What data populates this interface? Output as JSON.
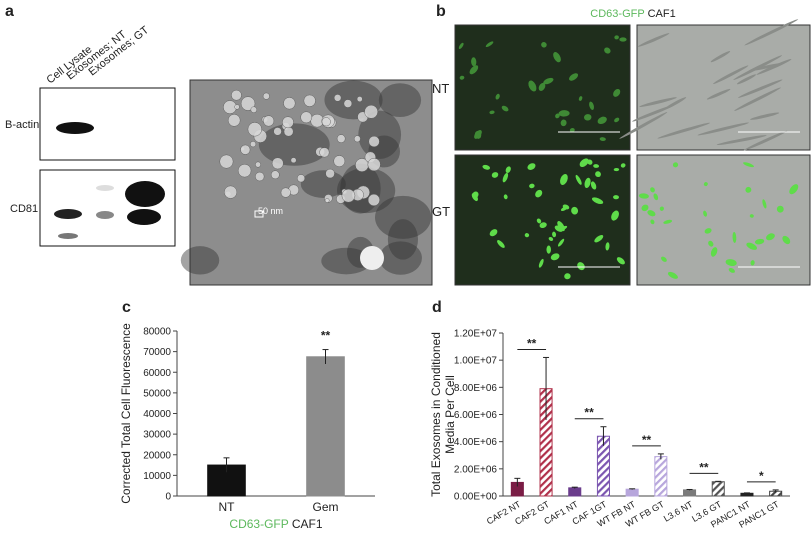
{
  "figure": {
    "panel_a": {
      "letter": "a",
      "lanes": [
        "Cell Lysate",
        "Exosomes; NT",
        "Exosomes; GT"
      ],
      "blots": [
        "B-actin",
        "CD81"
      ],
      "scale": "50 nm"
    },
    "panel_b": {
      "letter": "b",
      "title": [
        {
          "text": "CD63-GFP",
          "color": "#5cb85c"
        },
        {
          "text": "CAF1",
          "color": "#222222"
        }
      ],
      "rows": [
        "NT",
        "GT"
      ]
    }
  },
  "chart_data": [
    {
      "type": "bar",
      "panel": "c",
      "ylabel": [
        "Corrected Total Cell Fluorescence"
      ],
      "xlabel": [
        {
          "text": "CD63-GFP",
          "color": "#5cb85c"
        },
        {
          "text": "CAF1",
          "color": "#222222"
        }
      ],
      "categories": [
        "NT",
        "Gem"
      ],
      "values": [
        15000,
        67500
      ],
      "errors": [
        3500,
        3500
      ],
      "colors": [
        "#111111",
        "#8c8c8c"
      ],
      "hatched": [
        false,
        false
      ],
      "ylim": [
        0,
        80000
      ],
      "yticks": [
        0,
        10000,
        20000,
        30000,
        40000,
        50000,
        60000,
        70000,
        80000
      ],
      "significance": [
        {
          "pair": [
            1,
            1
          ],
          "label": "**"
        }
      ],
      "rotate_labels": false
    },
    {
      "type": "bar",
      "panel": "d",
      "ylabel": [
        "Total Exosomes in Conditioned",
        "Media Per Cell"
      ],
      "categories": [
        "CAF2 NT",
        "CAF2 GT",
        "CAF1 NT",
        "CAF 1GT",
        "WT FB NT",
        "WT FB GT",
        "L3.6 NT",
        "L3.6 GT",
        "PANC1 NT",
        "PANC1 GT"
      ],
      "values": [
        1000000,
        7900000,
        600000,
        4400000,
        500000,
        2900000,
        450000,
        1050000,
        200000,
        350000
      ],
      "errors": [
        300000,
        2300000,
        50000,
        700000,
        30000,
        200000,
        30000,
        30000,
        30000,
        100000
      ],
      "colors": [
        "#7a1d45",
        "#b0304a",
        "#6a3c8c",
        "#7b55b0",
        "#b7a6dc",
        "#b7a6dc",
        "#7a7a7a",
        "#555555",
        "#222222",
        "#444444"
      ],
      "hatched": [
        false,
        true,
        false,
        true,
        false,
        true,
        false,
        true,
        false,
        true
      ],
      "ylim": [
        0,
        12000000
      ],
      "yticks": [
        {
          "value": 0,
          "label": "0.00E+00"
        },
        {
          "value": 2000000,
          "label": "2.00E+06"
        },
        {
          "value": 4000000,
          "label": "4.00E+06"
        },
        {
          "value": 6000000,
          "label": "6.00E+06"
        },
        {
          "value": 8000000,
          "label": "8.00E+06"
        },
        {
          "value": 10000000,
          "label": "1.00E+07"
        },
        {
          "value": 12000000,
          "label": "1.20E+07"
        }
      ],
      "significance": [
        {
          "pair": [
            0,
            1
          ],
          "label": "**"
        },
        {
          "pair": [
            2,
            3
          ],
          "label": "**"
        },
        {
          "pair": [
            4,
            5
          ],
          "label": "**"
        },
        {
          "pair": [
            6,
            7
          ],
          "label": "**"
        },
        {
          "pair": [
            8,
            9
          ],
          "label": "*"
        }
      ],
      "rotate_labels": true
    }
  ]
}
